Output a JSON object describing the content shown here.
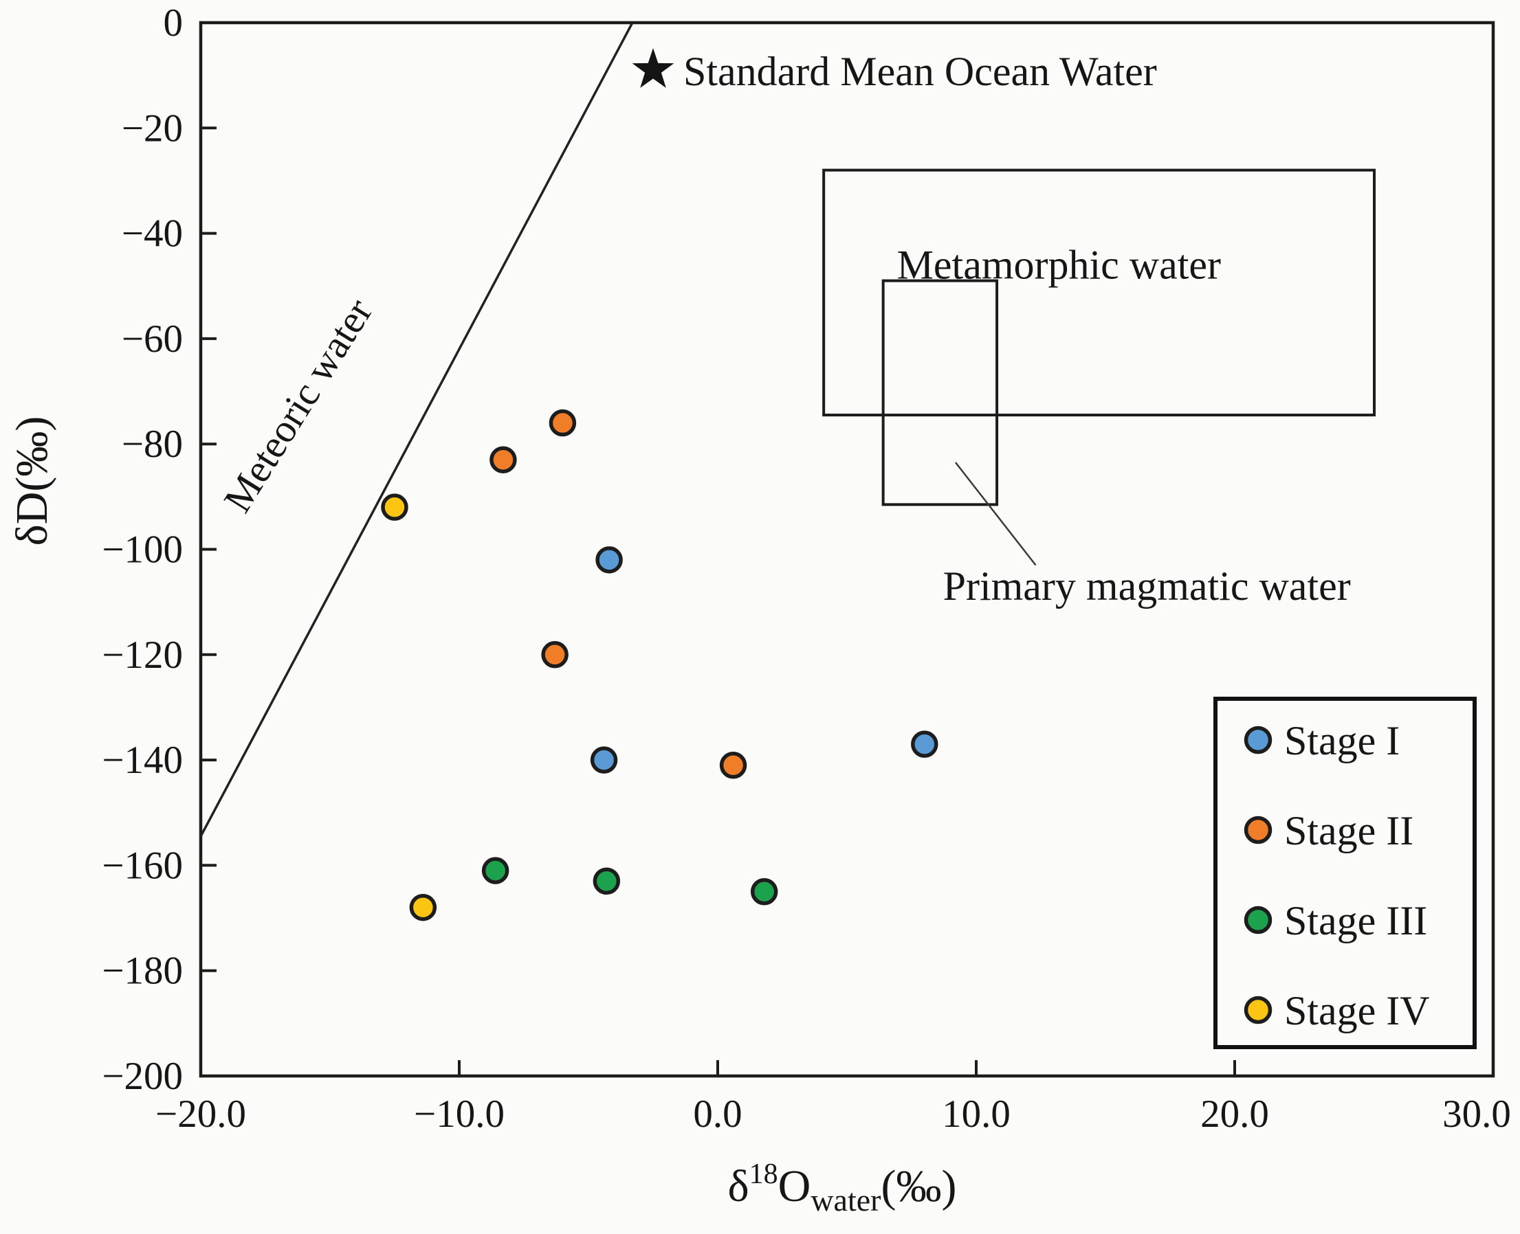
{
  "figure": {
    "background": "#fbfbf9",
    "axis_color": "#1c1c1c",
    "text_color": "#161616"
  },
  "chart_data": {
    "type": "scatter",
    "title": "",
    "xlabel": {
      "delta": "δ",
      "sup": "18",
      "element": "O",
      "sub": "water",
      "unit": "(‰)"
    },
    "ylabel": "δD(‰)",
    "xlim": [
      -20,
      30
    ],
    "ylim": [
      -200,
      0
    ],
    "grid": false,
    "x_tick_values": [
      -20,
      -10,
      0,
      10,
      20,
      30
    ],
    "x_tick_labels": [
      "−20.0",
      "−10.0",
      "0.0",
      "10.0",
      "20.0",
      "30.0"
    ],
    "x_ticks_with_mark": [
      -10,
      0,
      10,
      20
    ],
    "y_tick_values": [
      0,
      -20,
      -40,
      -60,
      -80,
      -100,
      -120,
      -140,
      -160,
      -180,
      -200
    ],
    "y_tick_labels": [
      "0",
      "−20",
      "−40",
      "−60",
      "−80",
      "−100",
      "−120",
      "−140",
      "−160",
      "−180",
      "−200"
    ],
    "y_ticks_with_mark": [
      -20,
      -40,
      -60,
      -80,
      -100,
      -120,
      -140,
      -160,
      -180
    ],
    "series": [
      {
        "name": "Stage I",
        "color": "#5B9BD5",
        "points": [
          [
            -4.2,
            -102
          ],
          [
            -4.4,
            -140
          ],
          [
            8.0,
            -137
          ]
        ]
      },
      {
        "name": "Stage II",
        "color": "#F07D28",
        "points": [
          [
            -6.0,
            -76
          ],
          [
            -8.3,
            -83
          ],
          [
            -6.3,
            -120
          ],
          [
            0.6,
            -141
          ]
        ]
      },
      {
        "name": "Stage III",
        "color": "#1CA24D",
        "points": [
          [
            -8.6,
            -161
          ],
          [
            -4.3,
            -163
          ],
          [
            1.8,
            -165
          ]
        ]
      },
      {
        "name": "Stage IV",
        "color": "#FDC513",
        "points": [
          [
            -12.5,
            -92
          ],
          [
            -11.4,
            -168
          ]
        ]
      }
    ],
    "marker": {
      "stroke": "#1d1d1d"
    },
    "meteoric_line": {
      "label": "Meteoric water",
      "from": [
        -20,
        -154.5
      ],
      "to": [
        -3.3,
        0
      ],
      "label_pos": [
        -15.8,
        -74
      ],
      "label_angle_deg": -58
    },
    "smow": {
      "label": "Standard Mean Ocean Water",
      "star_pos": [
        -2.5,
        -9
      ],
      "star_color": "#141414"
    },
    "boxes": [
      {
        "id": "metamorphic-water-box",
        "label": "Metamorphic water",
        "x": [
          4.1,
          25.4
        ],
        "y": [
          -74.5,
          -28
        ],
        "label_pos": [
          13.2,
          -46
        ]
      },
      {
        "id": "primary-magmatic-water-box",
        "label": "Primary magmatic water",
        "x": [
          6.4,
          10.8
        ],
        "y": [
          -91.5,
          -49
        ],
        "label_pos": [
          16.6,
          -107
        ],
        "leader": [
          [
            9.2,
            -83.5
          ],
          [
            12.3,
            -103
          ]
        ]
      }
    ],
    "legend": {
      "position": "lower right",
      "entries": [
        "Stage I",
        "Stage II",
        "Stage III",
        "Stage IV"
      ]
    }
  }
}
